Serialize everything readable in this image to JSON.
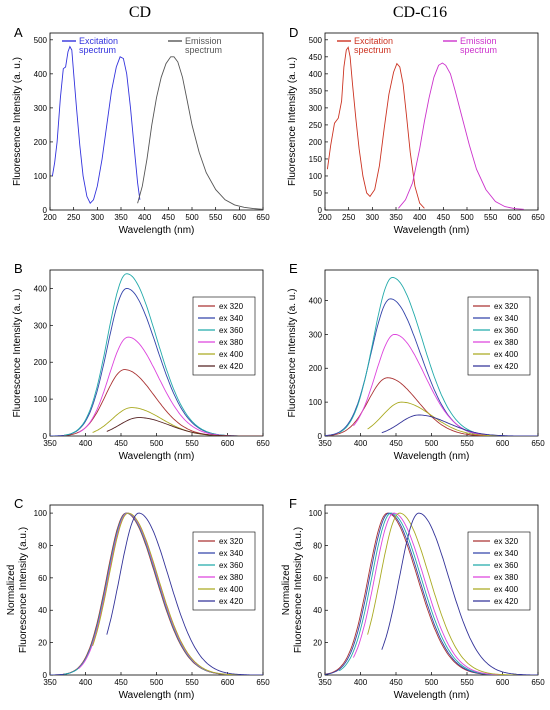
{
  "columns": [
    "CD",
    "CD-C16"
  ],
  "chart_data": [
    {
      "panel": "A",
      "type": "line",
      "xlabel": "Wavelength (nm)",
      "ylabel": "Fluorescence Intensity (a. u.)",
      "xlim": [
        200,
        650
      ],
      "ylim": [
        0,
        520
      ],
      "xticks": [
        200,
        250,
        300,
        350,
        400,
        450,
        500,
        550,
        600,
        650
      ],
      "yticks": [
        0,
        100,
        200,
        300,
        400,
        500
      ],
      "legend_placement": "top",
      "series": [
        {
          "name": "Excitation spectrum",
          "color": "#3333dd",
          "x": [
            205,
            210,
            215,
            222,
            228,
            233,
            238,
            242,
            246,
            250,
            256,
            263,
            270,
            278,
            285,
            292,
            300,
            310,
            320,
            330,
            340,
            348,
            355,
            362,
            370,
            378,
            385,
            390
          ],
          "y": [
            100,
            140,
            200,
            330,
            415,
            420,
            465,
            480,
            470,
            400,
            300,
            190,
            100,
            40,
            20,
            30,
            70,
            150,
            250,
            350,
            420,
            450,
            445,
            400,
            300,
            180,
            80,
            30
          ]
        },
        {
          "name": "Emission spectrum",
          "color": "#555555",
          "x": [
            385,
            395,
            405,
            415,
            425,
            435,
            445,
            455,
            462,
            470,
            480,
            490,
            500,
            515,
            530,
            550,
            570,
            590,
            610,
            630,
            650
          ],
          "y": [
            20,
            70,
            150,
            250,
            330,
            390,
            430,
            450,
            450,
            435,
            390,
            320,
            250,
            170,
            110,
            60,
            30,
            15,
            8,
            4,
            2
          ]
        }
      ]
    },
    {
      "panel": "D",
      "type": "line",
      "xlabel": "Wavelength (nm)",
      "ylabel": "Fluorescence Intensity (a. u.)",
      "xlim": [
        200,
        650
      ],
      "ylim": [
        0,
        520
      ],
      "xticks": [
        200,
        250,
        300,
        350,
        400,
        450,
        500,
        550,
        600,
        650
      ],
      "yticks": [
        0,
        50,
        100,
        150,
        200,
        250,
        300,
        350,
        400,
        450,
        500
      ],
      "legend_placement": "top",
      "series": [
        {
          "name": "Excitation spectrum",
          "color": "#cc3322",
          "x": [
            205,
            212,
            220,
            228,
            235,
            240,
            245,
            249,
            253,
            258,
            265,
            272,
            280,
            288,
            295,
            305,
            315,
            325,
            335,
            345,
            352,
            358,
            365,
            372,
            380,
            390,
            400,
            410
          ],
          "y": [
            120,
            190,
            255,
            270,
            320,
            420,
            470,
            478,
            450,
            370,
            270,
            180,
            100,
            50,
            40,
            60,
            130,
            240,
            340,
            405,
            430,
            420,
            370,
            280,
            170,
            70,
            20,
            5
          ]
        },
        {
          "name": "Emission spectrum",
          "color": "#cc33cc",
          "x": [
            355,
            370,
            385,
            400,
            410,
            420,
            430,
            440,
            448,
            455,
            465,
            475,
            490,
            505,
            520,
            540,
            560,
            580,
            600,
            620
          ],
          "y": [
            5,
            30,
            80,
            180,
            260,
            330,
            390,
            425,
            432,
            425,
            400,
            350,
            270,
            190,
            120,
            60,
            25,
            10,
            4,
            2
          ]
        }
      ]
    },
    {
      "panel": "B",
      "type": "line",
      "xlabel": "Wavelength (nm)",
      "ylabel": "Fluorescence Intensity (a. u.)",
      "xlim": [
        350,
        650
      ],
      "ylim": [
        0,
        450
      ],
      "xticks": [
        350,
        400,
        450,
        500,
        550,
        600,
        650
      ],
      "yticks": [
        0,
        100,
        200,
        300,
        400
      ],
      "legend_placement": "right",
      "series": [
        {
          "name": "ex 320",
          "color": "#aa3333",
          "peak_x": 455,
          "peak_y": 180
        },
        {
          "name": "ex 340",
          "color": "#3344aa",
          "peak_x": 458,
          "peak_y": 400
        },
        {
          "name": "ex 360",
          "color": "#22aaaa",
          "peak_x": 458,
          "peak_y": 440
        },
        {
          "name": "ex 380",
          "color": "#dd44dd",
          "peak_x": 460,
          "peak_y": 268
        },
        {
          "name": "ex 400",
          "color": "#aaaa22",
          "peak_x": 465,
          "peak_y": 77
        },
        {
          "name": "ex 420",
          "color": "#552222",
          "peak_x": 475,
          "peak_y": 50
        }
      ]
    },
    {
      "panel": "E",
      "type": "line",
      "xlabel": "Wavelength (nm)",
      "ylabel": "Fluorescence Intensity (a. u.)",
      "xlim": [
        350,
        650
      ],
      "ylim": [
        0,
        490
      ],
      "xticks": [
        350,
        400,
        450,
        500,
        550,
        600,
        650
      ],
      "yticks": [
        0,
        100,
        200,
        300,
        400
      ],
      "legend_placement": "right",
      "series": [
        {
          "name": "ex 320",
          "color": "#aa3333",
          "peak_x": 438,
          "peak_y": 172
        },
        {
          "name": "ex 340",
          "color": "#3344aa",
          "peak_x": 442,
          "peak_y": 405
        },
        {
          "name": "ex 360",
          "color": "#22aaaa",
          "peak_x": 445,
          "peak_y": 468
        },
        {
          "name": "ex 380",
          "color": "#dd44dd",
          "peak_x": 448,
          "peak_y": 300
        },
        {
          "name": "ex 400",
          "color": "#aaaa22",
          "peak_x": 458,
          "peak_y": 100
        },
        {
          "name": "ex 420",
          "color": "#333399",
          "peak_x": 482,
          "peak_y": 62
        }
      ]
    },
    {
      "panel": "C",
      "type": "line",
      "xlabel": "Wavelength (nm)",
      "ylabel": "Normalized Fluorescence Intensity (a.u.)",
      "xlim": [
        350,
        650
      ],
      "ylim": [
        0,
        105
      ],
      "xticks": [
        350,
        400,
        450,
        500,
        550,
        600,
        650
      ],
      "yticks": [
        0,
        20,
        40,
        60,
        80,
        100
      ],
      "legend_placement": "right",
      "series": [
        {
          "name": "ex 320",
          "color": "#aa3333",
          "peak_x": 457,
          "peak_y": 100
        },
        {
          "name": "ex 340",
          "color": "#3344aa",
          "peak_x": 458,
          "peak_y": 100
        },
        {
          "name": "ex 360",
          "color": "#22aaaa",
          "peak_x": 458,
          "peak_y": 100
        },
        {
          "name": "ex 380",
          "color": "#dd44dd",
          "peak_x": 459,
          "peak_y": 100
        },
        {
          "name": "ex 400",
          "color": "#aaaa22",
          "peak_x": 460,
          "peak_y": 100
        },
        {
          "name": "ex 420",
          "color": "#333399",
          "peak_x": 475,
          "peak_y": 100
        }
      ]
    },
    {
      "panel": "F",
      "type": "line",
      "xlabel": "Wavelength (nm)",
      "ylabel": "Normalized Fluorescence Intensity (a.u.)",
      "xlim": [
        350,
        650
      ],
      "ylim": [
        0,
        105
      ],
      "xticks": [
        350,
        400,
        450,
        500,
        550,
        600,
        650
      ],
      "yticks": [
        0,
        20,
        40,
        60,
        80,
        100
      ],
      "legend_placement": "right",
      "series": [
        {
          "name": "ex 320",
          "color": "#aa3333",
          "peak_x": 438,
          "peak_y": 100
        },
        {
          "name": "ex 340",
          "color": "#3344aa",
          "peak_x": 440,
          "peak_y": 100
        },
        {
          "name": "ex 360",
          "color": "#22aaaa",
          "peak_x": 443,
          "peak_y": 100
        },
        {
          "name": "ex 380",
          "color": "#dd44dd",
          "peak_x": 447,
          "peak_y": 100
        },
        {
          "name": "ex 400",
          "color": "#aaaa22",
          "peak_x": 455,
          "peak_y": 100
        },
        {
          "name": "ex 420",
          "color": "#333399",
          "peak_x": 482,
          "peak_y": 100
        }
      ]
    }
  ]
}
